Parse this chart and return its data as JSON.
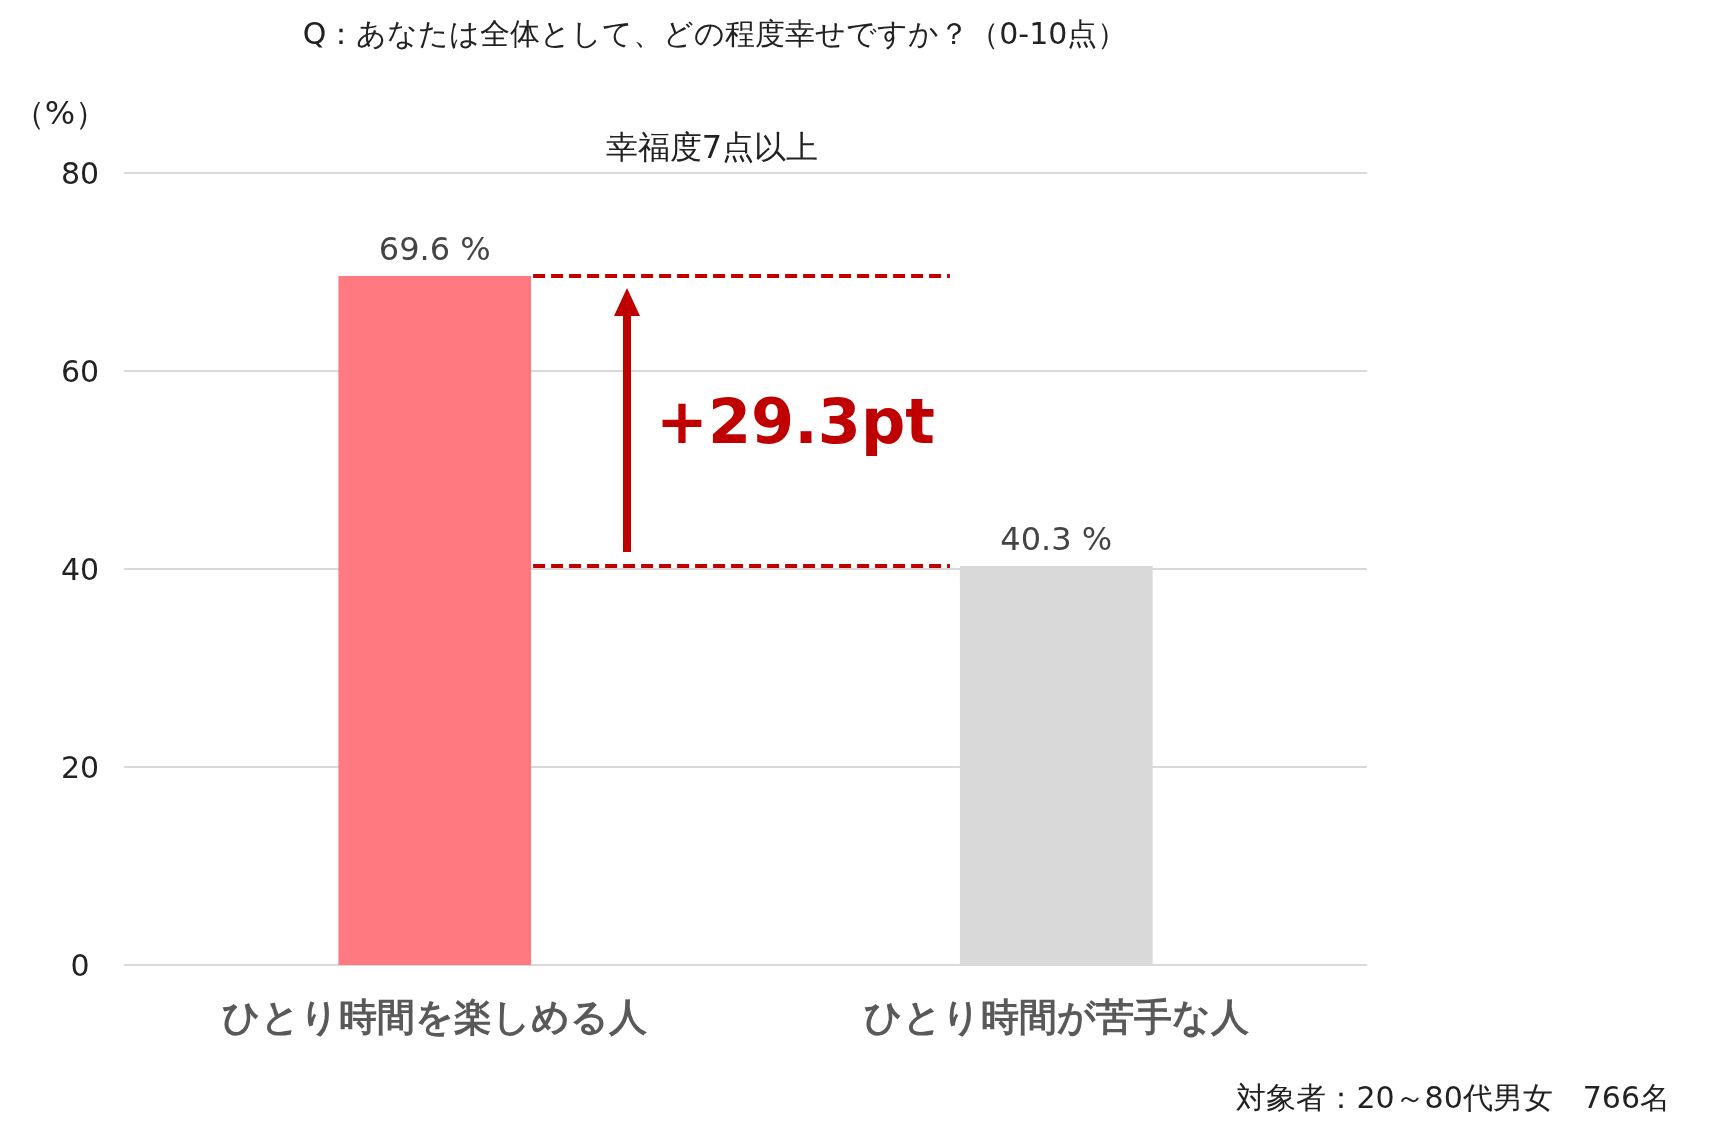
{
  "chart_data": {
    "type": "bar",
    "title": "Q：あなたは全体として、どの程度幸せですか？（0-10点）",
    "subtitle": "幸福度7点以上",
    "ylabel": "（%）",
    "categories": [
      "ひとり時間を楽しめる人",
      "ひとり時間が苦手な人"
    ],
    "values": [
      69.6,
      40.3
    ],
    "colors": [
      "#ff7a80",
      "#d9d9d9"
    ],
    "value_labels": [
      "69.6 %",
      "40.3 %"
    ],
    "ylim": [
      0,
      80
    ],
    "yticks": [
      0,
      20,
      40,
      60,
      80
    ],
    "grid": "y",
    "ref_lines": [
      {
        "axis": "y",
        "value": 69.6,
        "color": "#c00000",
        "line_style": "dashed"
      },
      {
        "axis": "y",
        "value": 40.3,
        "color": "#c00000",
        "line_style": "dashed"
      }
    ],
    "annotations": [
      "+29.3pt",
      "対象者：20～80代男女　766名"
    ]
  }
}
